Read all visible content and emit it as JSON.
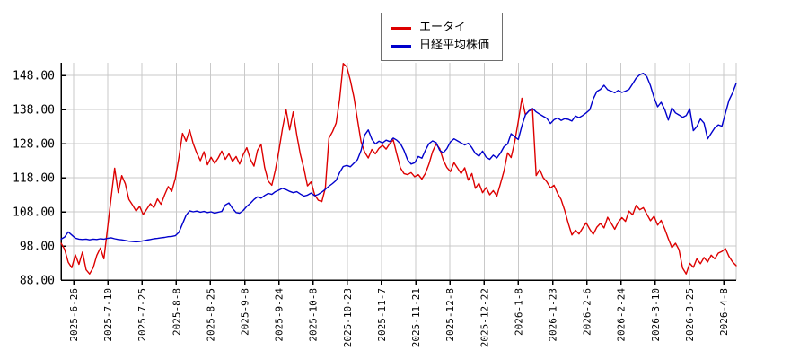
{
  "chart_data": {
    "type": "line",
    "title": "",
    "xlabel": "",
    "ylabel": "",
    "grid": true,
    "legend_position": "top-center",
    "background_color": "#ffffff",
    "gridline_color": "#c9c9c9",
    "axis_color": "#000000",
    "ylim": [
      88,
      151.8
    ],
    "y_tick_values": [
      88,
      98,
      108,
      118,
      128,
      138,
      148
    ],
    "y_tick_labels": [
      "88.00",
      "98.00",
      "108.00",
      "118.00",
      "128.00",
      "138.00",
      "148.00"
    ],
    "x_tick_labels": [
      "2025-6-26",
      "2025-7-10",
      "2025-7-25",
      "2025-8-8",
      "2025-8-25",
      "2025-9-8",
      "2025-9-24",
      "2025-10-8",
      "2025-10-23",
      "2025-11-7",
      "2025-11-21",
      "2025-12-8",
      "2025-12-22",
      "2026-1-8",
      "2026-1-23",
      "2026-2-6",
      "2026-2-24",
      "2026-3-10",
      "2026-3-25",
      "2026-4-8"
    ],
    "series": [
      {
        "name": "エータイ",
        "color": "#dd0000",
        "values": [
          98.8,
          97.0,
          93.2,
          91.6,
          95.4,
          92.6,
          96.2,
          91.0,
          89.8,
          91.6,
          95.2,
          97.4,
          94.2,
          103.0,
          112.0,
          120.8,
          113.6,
          118.6,
          116.2,
          111.6,
          110.0,
          108.2,
          109.6,
          107.2,
          108.8,
          110.4,
          109.2,
          111.8,
          110.2,
          113.0,
          115.4,
          114.0,
          117.8,
          124.0,
          131.0,
          128.7,
          132.0,
          128.0,
          125.2,
          123.0,
          125.6,
          121.8,
          124.0,
          122.2,
          123.8,
          125.8,
          123.4,
          125.0,
          122.8,
          124.2,
          122.0,
          124.8,
          126.8,
          123.4,
          121.4,
          126.0,
          127.8,
          121.0,
          117.0,
          115.8,
          120.2,
          126.0,
          132.5,
          137.9,
          132.0,
          137.3,
          130.5,
          124.8,
          120.6,
          115.6,
          116.8,
          113.0,
          111.4,
          111.0,
          115.0,
          129.6,
          131.5,
          134.0,
          141.0,
          151.5,
          150.5,
          146.5,
          141.5,
          135.0,
          128.5,
          125.5,
          123.8,
          126.3,
          125.0,
          126.6,
          127.5,
          126.4,
          128.0,
          129.1,
          124.9,
          120.9,
          119.2,
          118.9,
          119.5,
          118.3,
          118.9,
          117.6,
          119.2,
          122.0,
          125.6,
          127.9,
          126.5,
          123.2,
          121.0,
          119.8,
          122.4,
          120.8,
          119.2,
          120.9,
          117.3,
          119.2,
          114.9,
          116.4,
          113.6,
          115.1,
          113.0,
          114.2,
          112.6,
          116.2,
          120.0,
          125.3,
          123.9,
          128.5,
          134.5,
          141.3,
          136.5,
          137.6,
          137.9,
          118.6,
          120.4,
          118.0,
          116.8,
          115.0,
          115.8,
          113.4,
          111.6,
          108.4,
          104.6,
          101.2,
          102.6,
          101.5,
          103.2,
          104.8,
          102.9,
          101.4,
          103.5,
          104.6,
          103.3,
          106.4,
          104.7,
          102.9,
          105.0,
          106.3,
          105.2,
          108.2,
          107.1,
          109.9,
          108.6,
          109.2,
          107.3,
          105.4,
          106.7,
          104.1,
          105.5,
          103.0,
          100.1,
          97.5,
          98.8,
          96.9,
          91.5,
          89.8,
          92.9,
          91.7,
          94.2,
          92.8,
          94.6,
          93.3,
          95.3,
          94.2,
          95.9,
          96.4,
          97.2,
          94.9,
          93.3,
          92.2
        ]
      },
      {
        "name": "日経平均株価",
        "color": "#0000cc",
        "values": [
          100.0,
          100.6,
          102.1,
          101.2,
          100.3,
          100.0,
          99.9,
          100.0,
          99.8,
          100.0,
          99.9,
          100.1,
          100.0,
          100.2,
          100.4,
          100.1,
          99.9,
          99.8,
          99.6,
          99.4,
          99.3,
          99.2,
          99.3,
          99.5,
          99.7,
          99.9,
          100.1,
          100.2,
          100.4,
          100.5,
          100.7,
          100.8,
          101.0,
          102.0,
          104.5,
          107.0,
          108.3,
          108.0,
          108.2,
          107.9,
          108.1,
          107.8,
          108.0,
          107.6,
          107.9,
          108.1,
          110.0,
          110.6,
          109.0,
          107.8,
          107.6,
          108.4,
          109.6,
          110.5,
          111.6,
          112.4,
          112.0,
          112.8,
          113.4,
          113.1,
          113.9,
          114.4,
          114.9,
          114.5,
          114.0,
          113.6,
          113.9,
          113.2,
          112.6,
          112.9,
          113.5,
          112.7,
          113.1,
          113.8,
          114.6,
          115.5,
          116.3,
          117.2,
          119.5,
          121.3,
          121.6,
          121.2,
          122.3,
          123.3,
          126.0,
          130.5,
          132.0,
          129.3,
          127.9,
          128.7,
          128.2,
          129.0,
          128.6,
          129.6,
          129.0,
          128.0,
          126.0,
          123.3,
          122.0,
          122.4,
          124.2,
          123.7,
          126.0,
          128.0,
          128.8,
          128.3,
          126.0,
          125.3,
          126.5,
          128.5,
          129.4,
          128.8,
          128.2,
          127.6,
          128.1,
          126.8,
          125.1,
          124.3,
          125.8,
          124.0,
          123.4,
          124.6,
          123.8,
          125.2,
          127.1,
          127.9,
          130.9,
          130.0,
          129.2,
          133.2,
          136.4,
          137.6,
          138.3,
          137.3,
          136.6,
          136.0,
          135.4,
          133.9,
          135.0,
          135.5,
          134.8,
          135.3,
          135.1,
          134.6,
          136.1,
          135.6,
          136.2,
          137.0,
          137.9,
          141.1,
          143.3,
          143.9,
          145.1,
          143.8,
          143.4,
          142.9,
          143.6,
          143.0,
          143.4,
          143.9,
          145.5,
          147.2,
          148.2,
          148.6,
          147.6,
          145.0,
          141.5,
          138.8,
          140.1,
          138.0,
          134.9,
          138.5,
          137.0,
          136.4,
          135.7,
          136.2,
          138.2,
          131.8,
          133.0,
          135.2,
          134.0,
          129.4,
          131.0,
          132.6,
          133.5,
          133.1,
          137.0,
          140.7,
          142.9,
          145.7
        ]
      }
    ]
  },
  "legend": {
    "items": [
      {
        "label": "エータイ"
      },
      {
        "label": "日経平均株価"
      }
    ]
  }
}
